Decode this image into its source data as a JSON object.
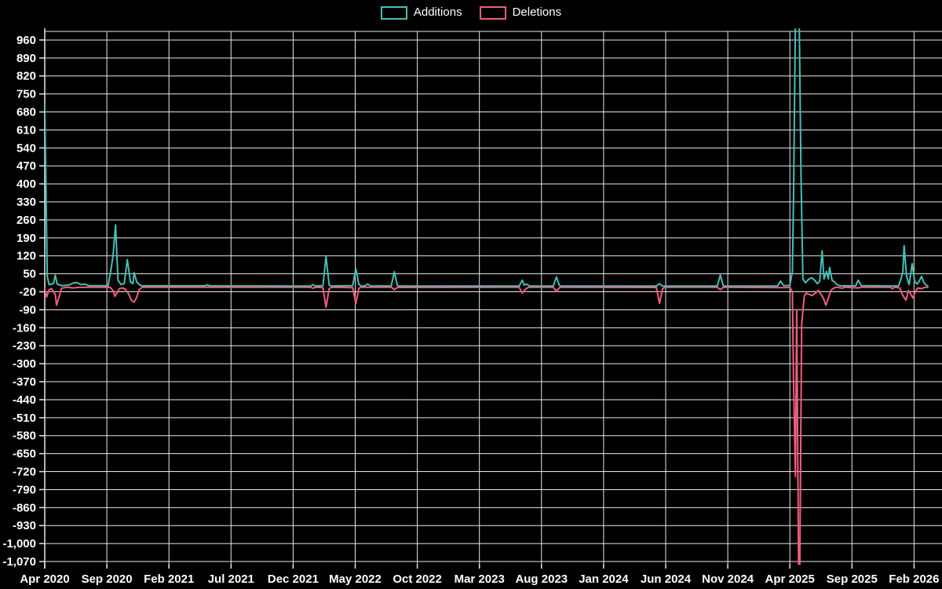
{
  "legend": {
    "additions_label": "Additions",
    "deletions_label": "Deletions"
  },
  "colors": {
    "background": "#000000",
    "grid": "#e8e8e8",
    "axis_text": "#ffffff",
    "additions": "#45bfb5",
    "deletions": "#f25c7c"
  },
  "chart_data": {
    "type": "line",
    "title": "",
    "xlabel": "",
    "ylabel": "",
    "x_unit": "months since Apr 2020",
    "x_axis": {
      "tick_month_offsets": [
        0,
        5,
        10,
        15,
        20,
        25,
        30,
        35,
        40,
        45,
        50,
        55,
        60,
        65,
        70
      ],
      "tick_labels": [
        "Apr 2020",
        "Sep 2020",
        "Feb 2021",
        "Jul 2021",
        "Dec 2021",
        "May 2022",
        "Oct 2022",
        "Mar 2023",
        "Aug 2023",
        "Jan 2024",
        "Jun 2024",
        "Nov 2024",
        "Apr 2025",
        "Sep 2025",
        "Feb 2026"
      ]
    },
    "y_axis": {
      "max": 960,
      "min": -1070,
      "step": 70,
      "tick_values": [
        960,
        890,
        820,
        750,
        680,
        610,
        540,
        470,
        400,
        330,
        260,
        190,
        120,
        50,
        -20,
        -90,
        -160,
        -230,
        -300,
        -370,
        -440,
        -510,
        -580,
        -650,
        -720,
        -790,
        -860,
        -930,
        -1000,
        -1070
      ],
      "tick_labels": [
        "960",
        "890",
        "820",
        "750",
        "680",
        "610",
        "540",
        "470",
        "400",
        "330",
        "260",
        "190",
        "120",
        "50",
        "-20",
        "-90",
        "-160",
        "-230",
        "-300",
        "-370",
        "-440",
        "-510",
        "-580",
        "-650",
        "-720",
        "-790",
        "-860",
        "-930",
        "-1,000",
        "-1,070"
      ]
    },
    "series": [
      {
        "name": "Additions",
        "color": "#45bfb5",
        "points": [
          [
            0,
            710
          ],
          [
            0.2,
            40
          ],
          [
            0.35,
            8
          ],
          [
            0.7,
            12
          ],
          [
            0.85,
            45
          ],
          [
            1.0,
            10
          ],
          [
            1.35,
            4
          ],
          [
            1.95,
            6
          ],
          [
            2.3,
            14
          ],
          [
            2.6,
            16
          ],
          [
            2.9,
            8
          ],
          [
            3.2,
            10
          ],
          [
            3.55,
            4
          ],
          [
            5.1,
            3
          ],
          [
            5.35,
            70
          ],
          [
            5.5,
            120
          ],
          [
            5.7,
            240
          ],
          [
            5.9,
            25
          ],
          [
            6.15,
            8
          ],
          [
            6.4,
            12
          ],
          [
            6.65,
            105
          ],
          [
            6.9,
            18
          ],
          [
            7.1,
            12
          ],
          [
            7.2,
            55
          ],
          [
            7.4,
            18
          ],
          [
            7.65,
            6
          ],
          [
            7.9,
            3
          ],
          [
            12.8,
            3
          ],
          [
            13.1,
            6
          ],
          [
            13.35,
            3
          ],
          [
            21.4,
            2
          ],
          [
            21.6,
            8
          ],
          [
            21.8,
            2
          ],
          [
            22.4,
            4
          ],
          [
            22.65,
            118
          ],
          [
            22.9,
            6
          ],
          [
            23.1,
            2
          ],
          [
            24.8,
            4
          ],
          [
            25.05,
            70
          ],
          [
            25.3,
            8
          ],
          [
            25.5,
            2
          ],
          [
            25.8,
            3
          ],
          [
            26.0,
            10
          ],
          [
            26.25,
            2
          ],
          [
            27.9,
            3
          ],
          [
            28.15,
            58
          ],
          [
            28.4,
            4
          ],
          [
            28.6,
            2
          ],
          [
            38.2,
            2
          ],
          [
            38.45,
            25
          ],
          [
            38.6,
            6
          ],
          [
            38.8,
            10
          ],
          [
            39.05,
            2
          ],
          [
            40.95,
            2
          ],
          [
            41.2,
            38
          ],
          [
            41.45,
            4
          ],
          [
            41.65,
            2
          ],
          [
            49.25,
            2
          ],
          [
            49.5,
            12
          ],
          [
            49.75,
            2
          ],
          [
            54.15,
            2
          ],
          [
            54.4,
            45
          ],
          [
            54.65,
            2
          ],
          [
            59.0,
            2
          ],
          [
            59.25,
            22
          ],
          [
            59.5,
            4
          ],
          [
            60.0,
            5
          ],
          [
            60.2,
            60
          ],
          [
            60.3,
            350
          ],
          [
            60.45,
            1040
          ],
          [
            60.75,
            1040
          ],
          [
            60.9,
            430
          ],
          [
            61.05,
            30
          ],
          [
            61.25,
            15
          ],
          [
            61.5,
            28
          ],
          [
            61.75,
            35
          ],
          [
            62.0,
            25
          ],
          [
            62.2,
            12
          ],
          [
            62.4,
            20
          ],
          [
            62.6,
            140
          ],
          [
            62.75,
            30
          ],
          [
            62.95,
            60
          ],
          [
            63.1,
            30
          ],
          [
            63.2,
            75
          ],
          [
            63.4,
            25
          ],
          [
            63.6,
            18
          ],
          [
            63.8,
            8
          ],
          [
            64.05,
            3
          ],
          [
            65.3,
            3
          ],
          [
            65.5,
            25
          ],
          [
            65.75,
            4
          ],
          [
            68.1,
            2
          ],
          [
            68.75,
            3
          ],
          [
            68.95,
            30
          ],
          [
            69.1,
            60
          ],
          [
            69.2,
            160
          ],
          [
            69.4,
            40
          ],
          [
            69.6,
            8
          ],
          [
            69.85,
            90
          ],
          [
            70.05,
            20
          ],
          [
            70.25,
            10
          ],
          [
            70.4,
            20
          ],
          [
            70.6,
            40
          ],
          [
            70.8,
            15
          ],
          [
            71.0,
            5
          ],
          [
            71.1,
            3
          ]
        ]
      },
      {
        "name": "Deletions",
        "color": "#f25c7c",
        "points": [
          [
            0,
            -8
          ],
          [
            0.15,
            -40
          ],
          [
            0.35,
            -12
          ],
          [
            0.55,
            -8
          ],
          [
            0.85,
            -30
          ],
          [
            0.95,
            -72
          ],
          [
            1.15,
            -40
          ],
          [
            1.35,
            -6
          ],
          [
            1.8,
            -2
          ],
          [
            2.3,
            -5
          ],
          [
            2.7,
            -3
          ],
          [
            3.35,
            -2
          ],
          [
            5.25,
            -2
          ],
          [
            5.5,
            -15
          ],
          [
            5.65,
            -38
          ],
          [
            5.8,
            -25
          ],
          [
            6.0,
            -8
          ],
          [
            6.25,
            -5
          ],
          [
            6.5,
            -10
          ],
          [
            6.75,
            -28
          ],
          [
            7.0,
            -55
          ],
          [
            7.2,
            -60
          ],
          [
            7.4,
            -42
          ],
          [
            7.6,
            -12
          ],
          [
            7.85,
            -2
          ],
          [
            21.4,
            -2
          ],
          [
            21.6,
            -6
          ],
          [
            21.8,
            -2
          ],
          [
            22.4,
            -4
          ],
          [
            22.65,
            -80
          ],
          [
            22.9,
            -8
          ],
          [
            23.1,
            -2
          ],
          [
            24.8,
            -4
          ],
          [
            25.05,
            -65
          ],
          [
            25.3,
            -6
          ],
          [
            25.5,
            -2
          ],
          [
            27.9,
            -2
          ],
          [
            28.15,
            -12
          ],
          [
            28.4,
            -3
          ],
          [
            38.2,
            -2
          ],
          [
            38.45,
            -25
          ],
          [
            38.6,
            -15
          ],
          [
            38.85,
            -5
          ],
          [
            39.05,
            -2
          ],
          [
            40.95,
            -2
          ],
          [
            41.2,
            -18
          ],
          [
            41.45,
            -4
          ],
          [
            41.65,
            -2
          ],
          [
            49.25,
            -3
          ],
          [
            49.5,
            -65
          ],
          [
            49.75,
            -8
          ],
          [
            49.95,
            -2
          ],
          [
            54.15,
            -2
          ],
          [
            54.4,
            -12
          ],
          [
            54.65,
            -2
          ],
          [
            59.25,
            -4
          ],
          [
            60.0,
            -3
          ],
          [
            60.2,
            -20
          ],
          [
            60.3,
            -370
          ],
          [
            60.45,
            -740
          ],
          [
            60.55,
            -90
          ],
          [
            60.7,
            -1080
          ],
          [
            60.8,
            -1080
          ],
          [
            60.95,
            -150
          ],
          [
            61.15,
            -40
          ],
          [
            61.3,
            -25
          ],
          [
            61.55,
            -30
          ],
          [
            61.8,
            -35
          ],
          [
            62.05,
            -25
          ],
          [
            62.3,
            -15
          ],
          [
            62.5,
            -30
          ],
          [
            62.7,
            -45
          ],
          [
            62.9,
            -72
          ],
          [
            63.1,
            -45
          ],
          [
            63.3,
            -15
          ],
          [
            63.55,
            -5
          ],
          [
            63.8,
            -2
          ],
          [
            64.2,
            -6
          ],
          [
            64.45,
            -2
          ],
          [
            65.5,
            -5
          ],
          [
            65.75,
            -2
          ],
          [
            68.1,
            -2
          ],
          [
            68.25,
            -8
          ],
          [
            68.45,
            -2
          ],
          [
            68.85,
            -5
          ],
          [
            69.05,
            -30
          ],
          [
            69.2,
            -42
          ],
          [
            69.35,
            -53
          ],
          [
            69.55,
            -15
          ],
          [
            69.75,
            -30
          ],
          [
            69.9,
            -44
          ],
          [
            70.1,
            -20
          ],
          [
            70.3,
            -5
          ],
          [
            70.6,
            -8
          ],
          [
            70.85,
            -3
          ],
          [
            71.1,
            -2
          ]
        ]
      }
    ],
    "grid": true,
    "legend_position": "top-center"
  }
}
